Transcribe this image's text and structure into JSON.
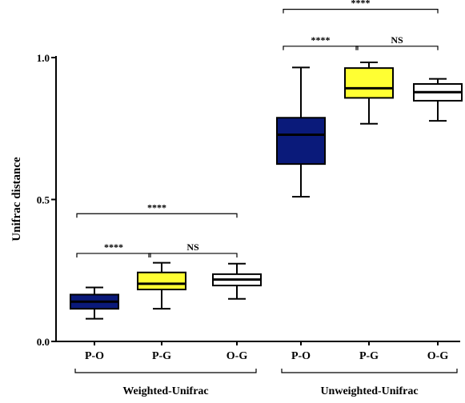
{
  "chart_data": {
    "type": "boxplot",
    "ylabel": "Unifrac distance",
    "ylim": [
      0,
      1
    ],
    "yticks": [
      {
        "value": 0,
        "label": "0.0"
      },
      {
        "value": 0.5,
        "label": "0.5"
      },
      {
        "value": 1,
        "label": "1.0"
      }
    ],
    "groups": [
      {
        "label": "Weighted-Unifrac",
        "boxes": [
          {
            "category": "P-O",
            "color": "#0a1a7a",
            "median_color": "#000000",
            "min": 0.08,
            "q1": 0.115,
            "median": 0.14,
            "q3": 0.165,
            "max": 0.19
          },
          {
            "category": "P-G",
            "color": "#ffff33",
            "median_color": "#000000",
            "min": 0.115,
            "q1": 0.183,
            "median": 0.203,
            "q3": 0.243,
            "max": 0.277
          },
          {
            "category": "O-G",
            "color": "#ffffff",
            "median_color": "#000000",
            "min": 0.15,
            "q1": 0.197,
            "median": 0.218,
            "q3": 0.237,
            "max": 0.274
          }
        ],
        "comparisons": [
          {
            "from": 0,
            "to": 1,
            "y": 0.31,
            "label": "****"
          },
          {
            "from": 1,
            "to": 2,
            "y": 0.31,
            "label": "NS"
          },
          {
            "from": 0,
            "to": 2,
            "y": 0.45,
            "label": "****"
          }
        ]
      },
      {
        "label": "Unweighted-Unifrac",
        "boxes": [
          {
            "category": "P-O",
            "color": "#0a1a7a",
            "median_color": "#000000",
            "min": 0.51,
            "q1": 0.625,
            "median": 0.728,
            "q3": 0.788,
            "max": 0.965
          },
          {
            "category": "P-G",
            "color": "#ffff33",
            "median_color": "#000000",
            "min": 0.767,
            "q1": 0.858,
            "median": 0.892,
            "q3": 0.963,
            "max": 0.983
          },
          {
            "category": "O-G",
            "color": "#ffffff",
            "median_color": "#000000",
            "min": 0.777,
            "q1": 0.848,
            "median": 0.878,
            "q3": 0.907,
            "max": 0.925
          }
        ],
        "comparisons": [
          {
            "from": 0,
            "to": 1,
            "y": 1.04,
            "label": "****"
          },
          {
            "from": 1,
            "to": 2,
            "y": 1.04,
            "label": "NS"
          },
          {
            "from": 0,
            "to": 2,
            "y": 1.17,
            "label": "****"
          }
        ]
      }
    ]
  }
}
